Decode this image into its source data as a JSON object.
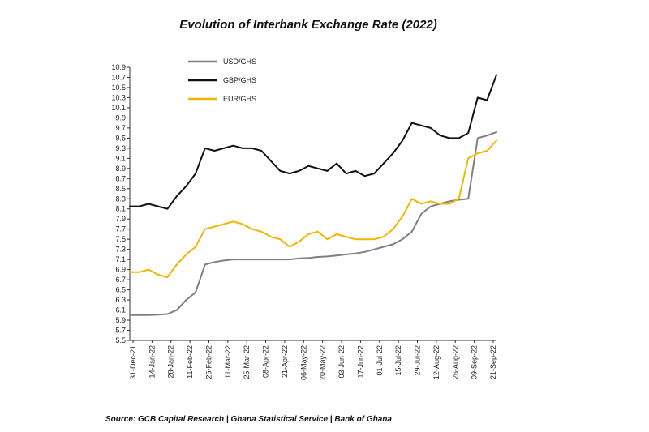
{
  "title": "Evolution of Interbank Exchange Rate (2022)",
  "source": "Source: GCB Capital Research | Ghana Statistical Service | Bank of Ghana",
  "chart_data": {
    "type": "line",
    "title": "Evolution of Interbank Exchange Rate (2022)",
    "ylim": [
      5.5,
      10.9
    ],
    "yticks": [
      "5.5",
      "5.7",
      "5.9",
      "6.1",
      "6.3",
      "6.5",
      "6.7",
      "6.9",
      "7.1",
      "7.3",
      "7.5",
      "7.7",
      "7.9",
      "8.1",
      "8.3",
      "8.5",
      "8.7",
      "8.9",
      "9.1",
      "9.3",
      "9.5",
      "9.7",
      "9.9",
      "10.1",
      "10.3",
      "10.5",
      "10.7",
      "10.9"
    ],
    "x_tick_labels": [
      "31-Dec-21",
      "14-Jan-22",
      "28-Jan-22",
      "11-Feb-22",
      "25-Feb-22",
      "11-Mar-22",
      "25-Mar-22",
      "08-Apr-22",
      "21-Apr-22",
      "06-May-22",
      "20-May-22",
      "03-Jun-22",
      "17-Jun-22",
      "01-Jul-22",
      "15-Jul-22",
      "29-Jul-22",
      "12-Aug-22",
      "26-Aug-22",
      "09-Sep-22",
      "21-Sep-22"
    ],
    "grid": false,
    "legend_position": "top-left",
    "x": [
      "31-Dec-21",
      "07-Jan-22",
      "14-Jan-22",
      "21-Jan-22",
      "28-Jan-22",
      "04-Feb-22",
      "11-Feb-22",
      "18-Feb-22",
      "25-Feb-22",
      "04-Mar-22",
      "11-Mar-22",
      "18-Mar-22",
      "25-Mar-22",
      "01-Apr-22",
      "08-Apr-22",
      "14-Apr-22",
      "21-Apr-22",
      "29-Apr-22",
      "06-May-22",
      "13-May-22",
      "20-May-22",
      "27-May-22",
      "03-Jun-22",
      "10-Jun-22",
      "17-Jun-22",
      "24-Jun-22",
      "01-Jul-22",
      "08-Jul-22",
      "15-Jul-22",
      "22-Jul-22",
      "29-Jul-22",
      "05-Aug-22",
      "12-Aug-22",
      "19-Aug-22",
      "26-Aug-22",
      "02-Sep-22",
      "09-Sep-22",
      "14-Sep-22",
      "21-Sep-22",
      "27-Sep-22"
    ],
    "series": [
      {
        "name": "USD/GHS",
        "color": "#7f7f7f",
        "values": [
          6.0,
          6.0,
          6.0,
          6.01,
          6.02,
          6.1,
          6.3,
          6.45,
          7.0,
          7.05,
          7.08,
          7.1,
          7.1,
          7.1,
          7.1,
          7.1,
          7.1,
          7.1,
          7.12,
          7.13,
          7.15,
          7.16,
          7.18,
          7.2,
          7.22,
          7.25,
          7.3,
          7.35,
          7.4,
          7.5,
          7.65,
          8.0,
          8.15,
          8.2,
          8.25,
          8.28,
          8.3,
          9.5,
          9.55,
          9.62
        ]
      },
      {
        "name": "GBP/GHS",
        "color": "#111111",
        "values": [
          8.15,
          8.15,
          8.2,
          8.15,
          8.1,
          8.35,
          8.55,
          8.8,
          9.3,
          9.25,
          9.3,
          9.35,
          9.3,
          9.3,
          9.25,
          9.05,
          8.85,
          8.8,
          8.85,
          8.95,
          8.9,
          8.85,
          9.0,
          8.8,
          8.85,
          8.75,
          8.8,
          9.0,
          9.2,
          9.45,
          9.8,
          9.75,
          9.7,
          9.55,
          9.5,
          9.5,
          9.6,
          10.3,
          10.25,
          10.75
        ]
      },
      {
        "name": "EUR/GHS",
        "color": "#f2b600",
        "values": [
          6.85,
          6.85,
          6.9,
          6.8,
          6.75,
          7.0,
          7.2,
          7.35,
          7.7,
          7.75,
          7.8,
          7.85,
          7.8,
          7.7,
          7.65,
          7.55,
          7.5,
          7.35,
          7.45,
          7.6,
          7.65,
          7.5,
          7.6,
          7.55,
          7.5,
          7.5,
          7.5,
          7.55,
          7.7,
          7.95,
          8.3,
          8.2,
          8.25,
          8.2,
          8.2,
          8.3,
          9.1,
          9.2,
          9.25,
          9.45
        ]
      }
    ]
  }
}
